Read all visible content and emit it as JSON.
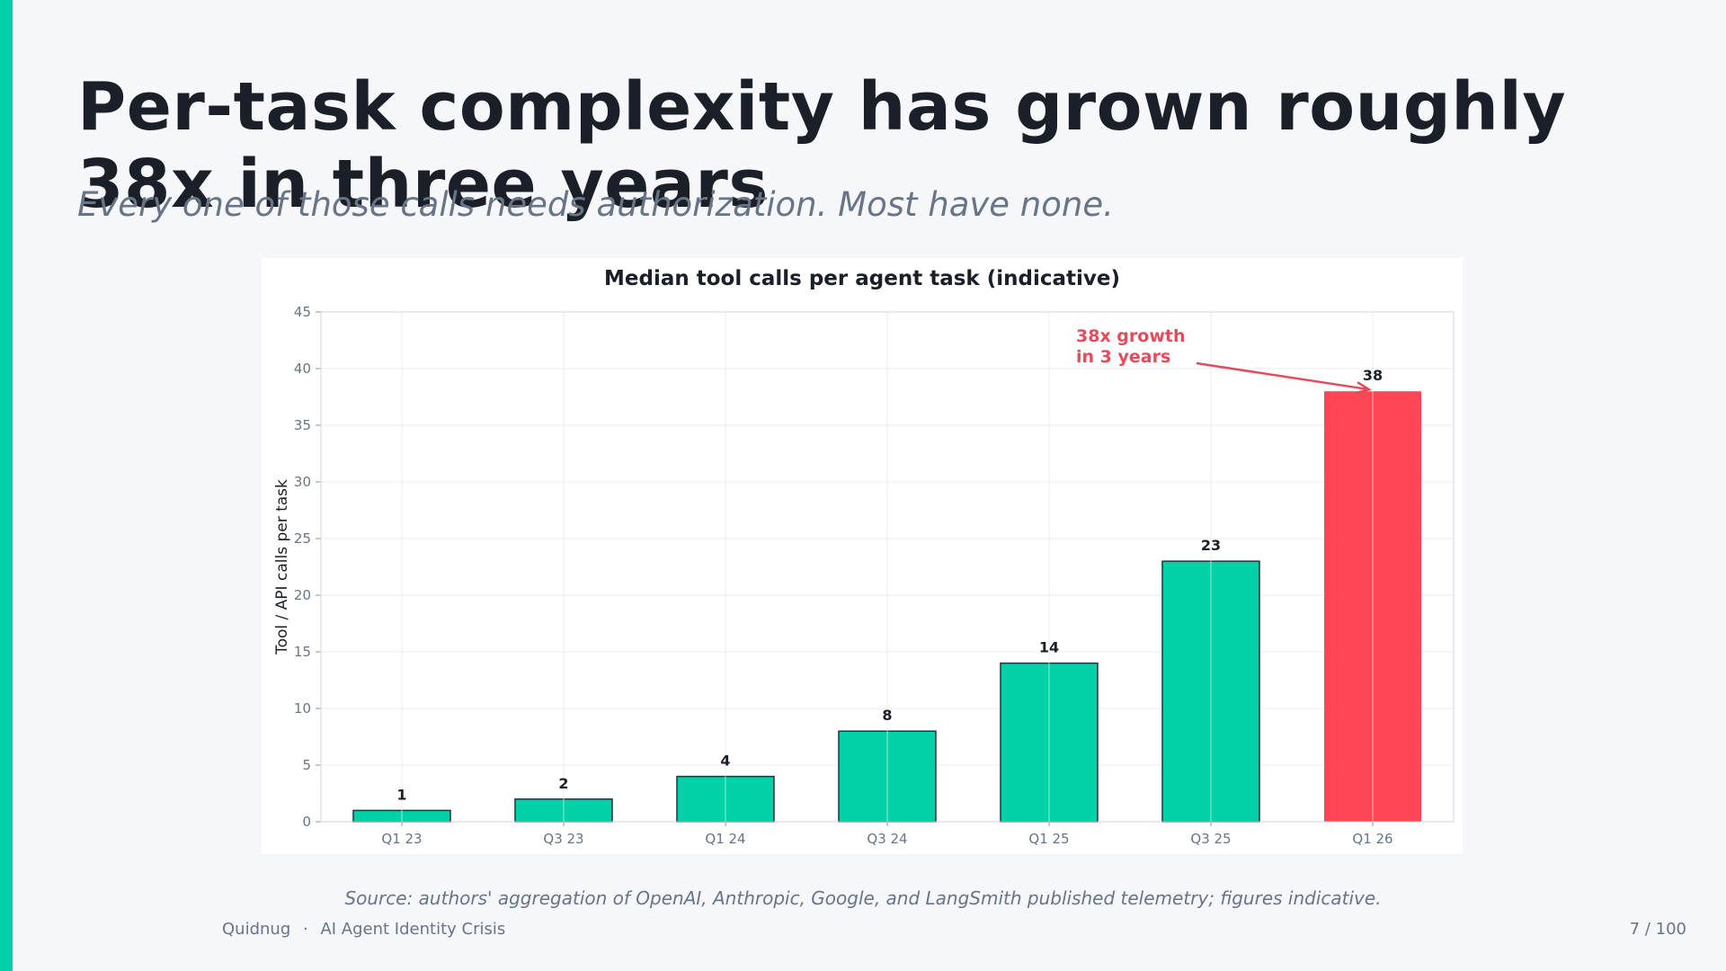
{
  "slide": {
    "title": "Per-task complexity has grown roughly 38x in three years",
    "subtitle": "Every one of those calls needs authorization. Most have none.",
    "source": "Source: authors' aggregation of OpenAI, Anthropic, Google, and LangSmith published telemetry; figures indicative.",
    "footer_brand": "Quidnug",
    "footer_separator": "·",
    "footer_deck": "AI Agent Identity Crisis",
    "page_number": "7 / 100"
  },
  "colors": {
    "accent": "#00d1a7",
    "highlight": "#ff4655",
    "annotation": "#e84a5a"
  },
  "chart_data": {
    "type": "bar",
    "title": "Median tool calls per agent task (indicative)",
    "xlabel": "",
    "ylabel": "Tool / API calls per task",
    "categories": [
      "Q1 23",
      "Q3 23",
      "Q1 24",
      "Q3 24",
      "Q1 25",
      "Q3 25",
      "Q1 26"
    ],
    "values": [
      1,
      2,
      4,
      8,
      14,
      23,
      38
    ],
    "data_labels": [
      "1",
      "2",
      "4",
      "8",
      "14",
      "23",
      "38"
    ],
    "ylim": [
      0,
      45
    ],
    "yticks": [
      0,
      5,
      10,
      15,
      20,
      25,
      30,
      35,
      40,
      45
    ],
    "grid": true,
    "highlighted_category": "Q1 26",
    "annotation": {
      "lines": [
        "38x growth",
        "in 3 years"
      ],
      "target_category": "Q1 26",
      "target_value": 38
    }
  }
}
